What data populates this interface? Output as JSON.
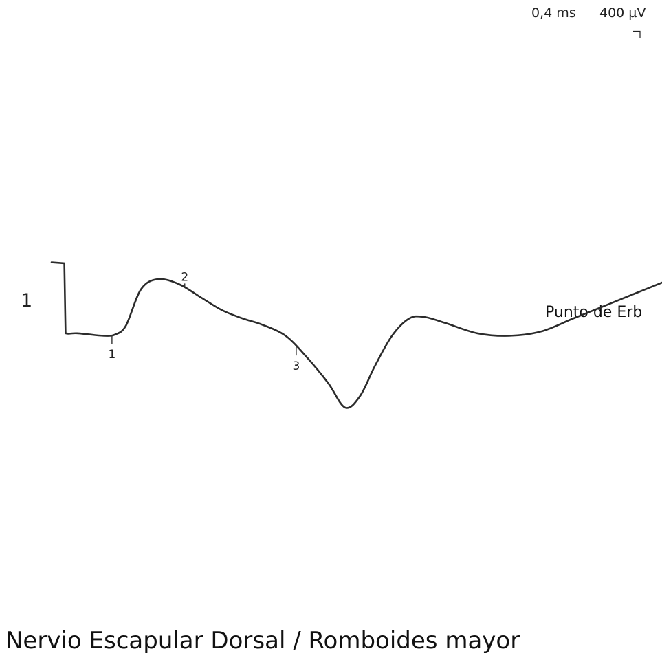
{
  "chart_data": {
    "type": "line",
    "title": "Nervio Escapular Dorsal / Romboides mayor",
    "scale": {
      "time": "0,4 ms",
      "amplitude": "400 µV"
    },
    "trace": {
      "number": "1",
      "site": "Punto de Erb",
      "color": "#2b2b2b",
      "x_ms": [
        0.0,
        0.06,
        0.066,
        0.08,
        0.12,
        0.18,
        0.25,
        0.3,
        0.35,
        0.42,
        0.5,
        0.6,
        0.7,
        0.8,
        0.9,
        0.99,
        1.1,
        1.2,
        1.3,
        1.38,
        1.45,
        1.52,
        1.6,
        1.68,
        1.75,
        1.85,
        2.0,
        2.15,
        2.3,
        2.45,
        2.6,
        2.75,
        2.87
      ],
      "y_uV": [
        555,
        545,
        -270,
        -275,
        -270,
        -285,
        -300,
        -285,
        -180,
        240,
        360,
        300,
        150,
        0,
        -100,
        -170,
        -300,
        -550,
        -850,
        -1135,
        -1000,
        -650,
        -300,
        -100,
        -80,
        -150,
        -270,
        -300,
        -250,
        -100,
        50,
        200,
        320
      ],
      "markers": [
        {
          "label": "1",
          "x_ms": 0.284
        },
        {
          "label": "2",
          "x_ms": 0.626
        },
        {
          "label": "3",
          "x_ms": 1.15
        }
      ]
    }
  }
}
